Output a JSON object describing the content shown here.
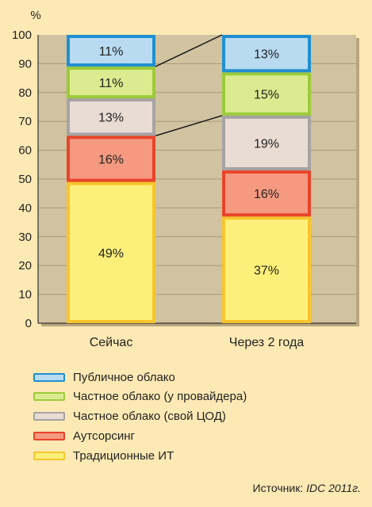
{
  "chart_data": {
    "type": "bar",
    "stacked": true,
    "categories": [
      "Сейчас",
      "Через 2 года"
    ],
    "series": [
      {
        "name": "Традиционные ИТ",
        "values": [
          49,
          37
        ],
        "color": "#fdf07a",
        "border": "#f7c52c"
      },
      {
        "name": "Аутсорсинг",
        "values": [
          16,
          16
        ],
        "color": "#f59a80",
        "border": "#e8432a"
      },
      {
        "name": "Частное облако (свой ЦОД)",
        "values": [
          13,
          19
        ],
        "color": "#e8dcd3",
        "border": "#a6a3a3"
      },
      {
        "name": "Частное облако (у провайдера)",
        "values": [
          11,
          15
        ],
        "color": "#dceb8f",
        "border": "#9dcb3b"
      },
      {
        "name": "Публичное облако",
        "values": [
          11,
          13
        ],
        "color": "#b9dbf2",
        "border": "#1f8fd1"
      }
    ],
    "data_labels": [
      [
        "49%",
        "37%"
      ],
      [
        "16%",
        "16%"
      ],
      [
        "13%",
        "19%"
      ],
      [
        "11%",
        "15%"
      ],
      [
        "11%",
        "13%"
      ]
    ],
    "y_unit": "%",
    "yticks": [
      "0",
      "10",
      "20",
      "30",
      "40",
      "50",
      "60",
      "70",
      "80",
      "90",
      "100"
    ],
    "ylim": [
      0,
      100
    ],
    "grid": true,
    "connector_lines": [
      [
        3,
        4
      ],
      [
        1,
        2
      ]
    ],
    "plot_background": "#d1c3a0",
    "legend_position": "bottom",
    "legend_order": [
      4,
      3,
      2,
      1,
      0
    ]
  },
  "source": {
    "prefix": "Источник: ",
    "text": "IDC 2011г."
  }
}
